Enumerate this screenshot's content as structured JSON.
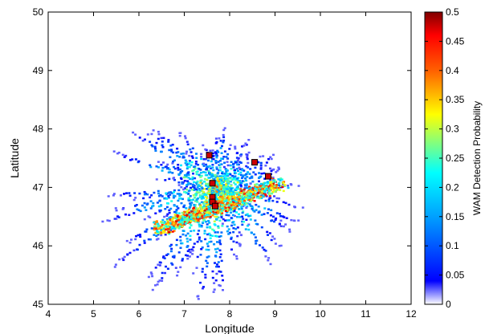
{
  "chart_data": {
    "type": "heatmap",
    "xlabel": "Longitude",
    "ylabel": "Latitude",
    "xlim": [
      4,
      12
    ],
    "ylim": [
      45,
      50
    ],
    "xticks": [
      4,
      5,
      6,
      7,
      8,
      9,
      10,
      11,
      12
    ],
    "yticks": [
      45,
      46,
      47,
      48,
      49,
      50
    ],
    "grid": false,
    "colorbar": {
      "label": "WAM Detection Probability",
      "min": 0,
      "max": 0.5,
      "ticks": [
        0,
        0.05,
        0.1,
        0.15,
        0.2,
        0.25,
        0.3,
        0.35,
        0.4,
        0.45,
        0.5
      ],
      "colormap": "jet-white-low"
    },
    "coverage": {
      "description_free": true,
      "center": [
        7.75,
        47.0
      ],
      "extent_lon": [
        5.5,
        9.9
      ],
      "extent_lat": [
        45.9,
        48.7
      ]
    },
    "stations": {
      "marker_color": "#cc0000",
      "points": [
        {
          "lon": 7.55,
          "lat": 47.55
        },
        {
          "lon": 7.62,
          "lat": 47.07
        },
        {
          "lon": 7.62,
          "lat": 46.83
        },
        {
          "lon": 7.62,
          "lat": 46.75
        },
        {
          "lon": 7.68,
          "lat": 46.68
        },
        {
          "lon": 8.55,
          "lat": 47.43
        },
        {
          "lon": 8.85,
          "lat": 47.19
        }
      ]
    }
  }
}
